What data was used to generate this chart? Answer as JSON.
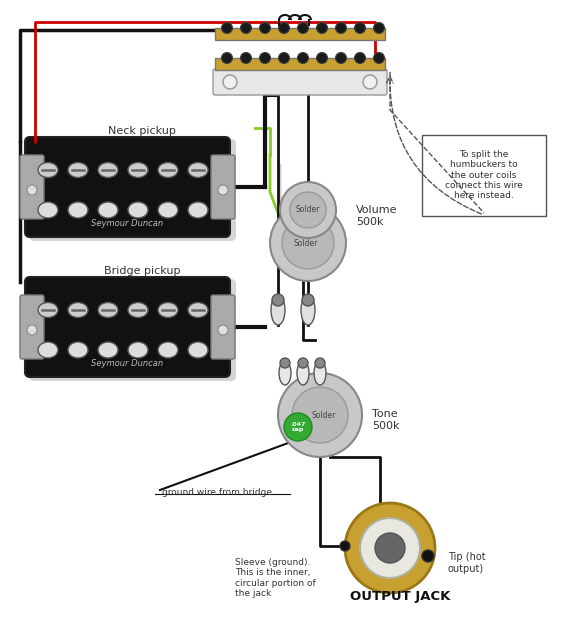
{
  "bg_color": "#ffffff",
  "neck_pickup_label": "Neck pickup",
  "bridge_pickup_label": "Bridge pickup",
  "seymour_duncan_label": "Seymour Duncan",
  "volume_label": "Volume\n500k",
  "tone_label": "Tone\n500k",
  "output_jack_label": "OUTPUT JACK",
  "tip_label": "Tip (hot\noutput)",
  "sleeve_label": "Sleeve (ground).\nThis is the inner,\ncircular portion of\nthe jack",
  "ground_wire_label": "ground wire from bridge",
  "split_label": "To split the\nhumbuckers to\nthe outer coils\nconnect this wire\nhere instead.",
  "wire_black": "#111111",
  "wire_red": "#cc0000",
  "wire_green": "#88cc22",
  "wire_white": "#cccccc",
  "pickup_fill": "#111111",
  "pickup_metal": "#aaaaaa",
  "pot_outer": "#c0c0c0",
  "pot_inner": "#b0b0b0",
  "pot_solder": "#aaaaaa",
  "cap_fill": "#33aa33",
  "jack_gold": "#c8a030",
  "jack_white": "#e8e8e0",
  "jack_center": "#666666",
  "switch_gold": "#c8a030",
  "text_color": "#333333"
}
